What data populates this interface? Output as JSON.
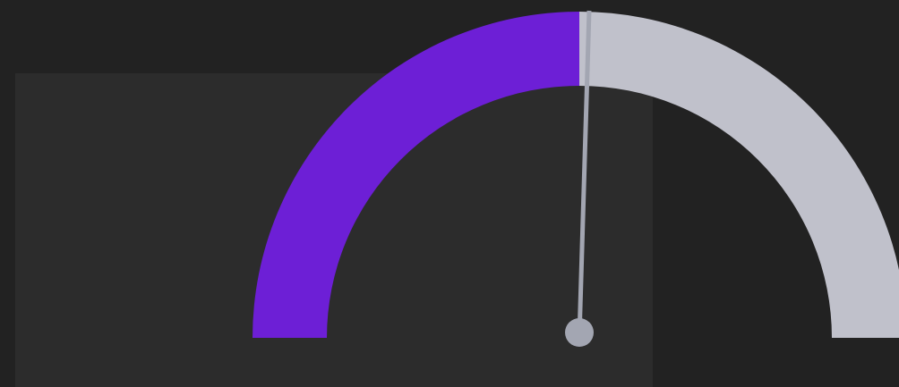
{
  "gauge": {
    "value_fraction": 0.5,
    "colors": {
      "background": "#222222",
      "panel": "#2c2c2c",
      "filled_arc": "#6d1fd6",
      "remaining_arc": "#c0c1cb",
      "needle": "#a3a6b2",
      "needle_hub": "#a3a6b2"
    }
  }
}
